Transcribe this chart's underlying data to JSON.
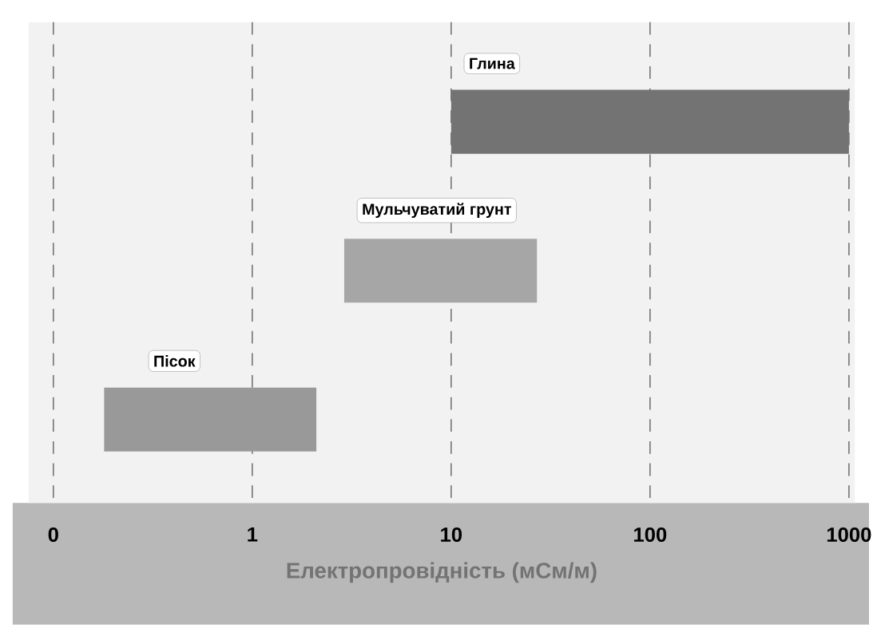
{
  "chart_data": {
    "type": "bar",
    "orientation": "horizontal",
    "xlabel": "Електропровідність (мСм/м)",
    "categories": [
      "Глина",
      "Мульчуватий грунт",
      "Пісок"
    ],
    "base": [
      10,
      2.9,
      0.18
    ],
    "values": [
      990,
      24.1,
      1.92
    ],
    "colors": [
      "#737373",
      "#a6a6a6",
      "#999999"
    ],
    "log": "x",
    "xlim": [
      0.075,
      1070
    ],
    "xticks": [
      {
        "value": 0.1,
        "label": "0"
      },
      1,
      10,
      100,
      1000
    ],
    "grid": "x",
    "tick_labels": "x"
  }
}
